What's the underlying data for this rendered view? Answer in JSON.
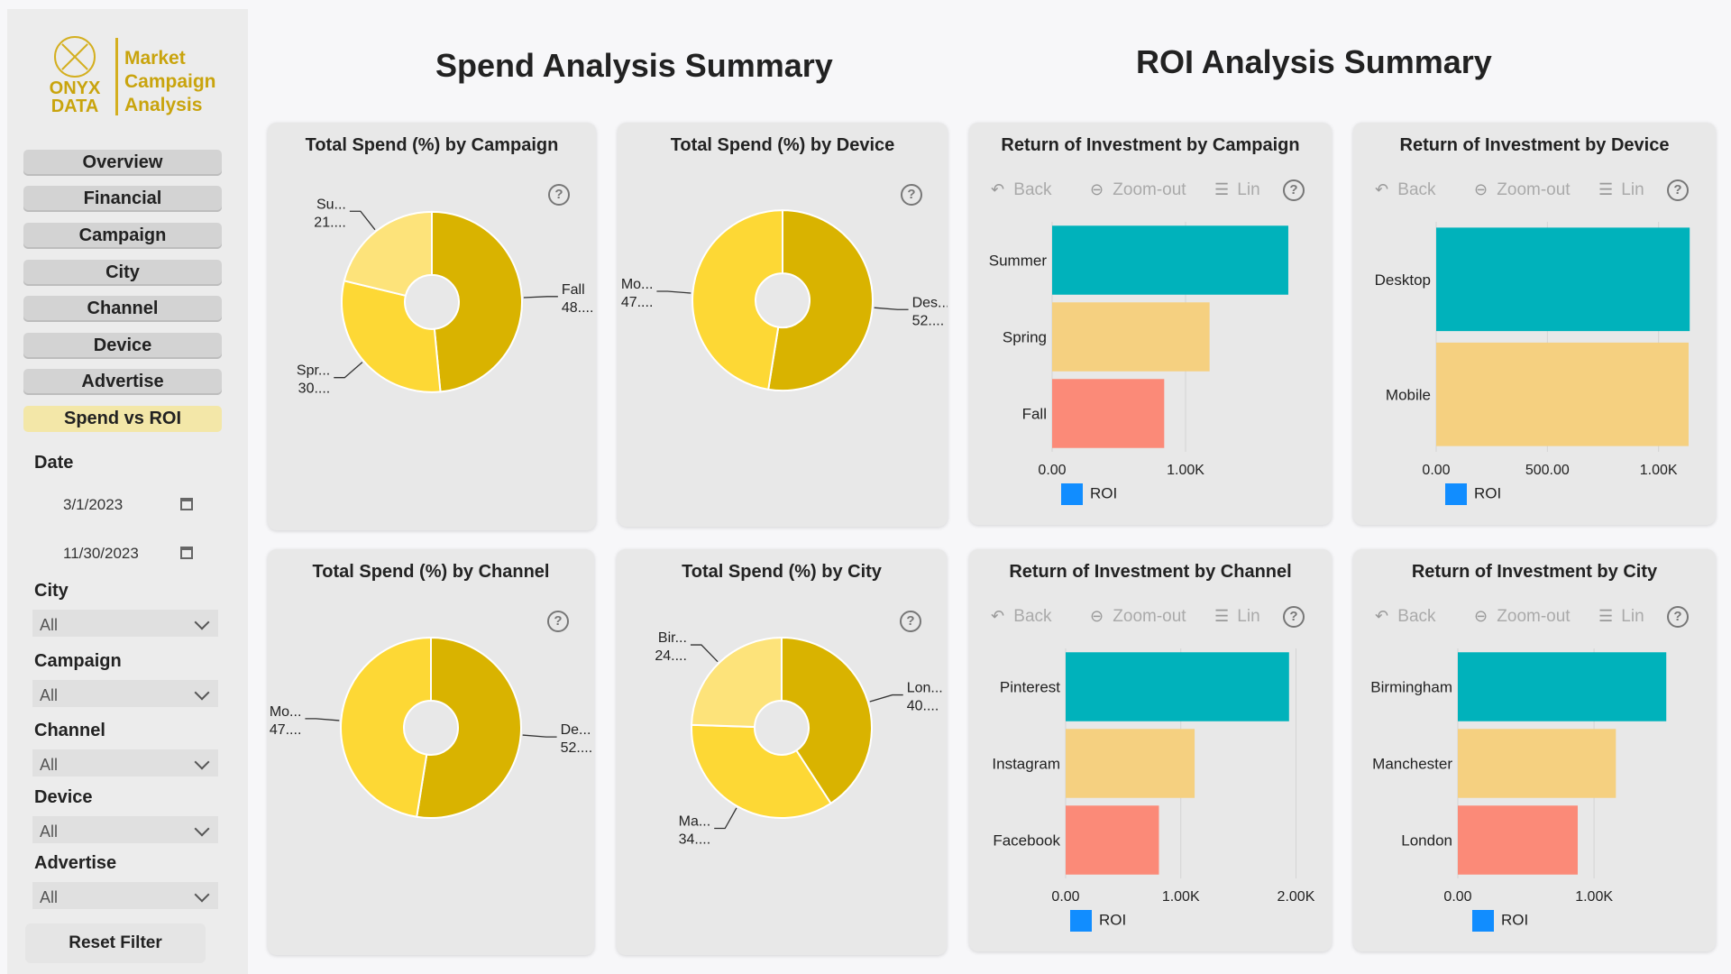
{
  "logo": {
    "onyx": "ONYX\nDATA",
    "title": "Market\nCampaign\nAnalysis"
  },
  "nav": [
    {
      "label": "Overview",
      "active": false
    },
    {
      "label": "Financial",
      "active": false
    },
    {
      "label": "Campaign",
      "active": false
    },
    {
      "label": "City",
      "active": false
    },
    {
      "label": "Channel",
      "active": false
    },
    {
      "label": "Device",
      "active": false
    },
    {
      "label": "Advertise",
      "active": false
    },
    {
      "label": "Spend vs ROI",
      "active": true
    }
  ],
  "filters": {
    "date_label": "Date",
    "date_start": "3/1/2023",
    "date_end": "11/30/2023",
    "city_label": "City",
    "city_value": "All",
    "campaign_label": "Campaign",
    "campaign_value": "All",
    "channel_label": "Channel",
    "channel_value": "All",
    "device_label": "Device",
    "device_value": "All",
    "advertise_label": "Advertise",
    "advertise_value": "All",
    "reset_label": "Reset Filter"
  },
  "headings": {
    "spend": "Spend Analysis Summary",
    "roi": "ROI Analysis Summary"
  },
  "toolbar": {
    "back": "Back",
    "zoom_out": "Zoom-out",
    "lin": "Lin",
    "help": "?"
  },
  "colors": {
    "accent": "#d4af1f",
    "teal": "#00b2bb",
    "sand": "#f5d080",
    "salmon": "#fb8a78",
    "legend": "#118dff",
    "donut_dark": "#d9b300",
    "donut_mid": "#fdd835",
    "donut_light": "#fde37a"
  },
  "chart_data": [
    {
      "id": "spend_campaign",
      "type": "pie",
      "title": "Total Spend (%) by Campaign",
      "slices": [
        {
          "label": "Fall",
          "value": 48,
          "label_text": "Fall",
          "value_text": "48....",
          "color": "#d9b300"
        },
        {
          "label": "Spring",
          "value": 30,
          "label_text": "Spr...",
          "value_text": "30....",
          "color": "#fdd835"
        },
        {
          "label": "Summer",
          "value": 21,
          "label_text": "Su...",
          "value_text": "21....",
          "color": "#fde37a"
        }
      ]
    },
    {
      "id": "spend_device",
      "type": "pie",
      "title": "Total Spend (%) by Device",
      "slices": [
        {
          "label": "Desktop",
          "value": 52,
          "label_text": "Des...",
          "value_text": "52....",
          "color": "#d9b300"
        },
        {
          "label": "Mobile",
          "value": 47,
          "label_text": "Mo...",
          "value_text": "47....",
          "color": "#fdd835"
        }
      ]
    },
    {
      "id": "spend_channel",
      "type": "pie",
      "title": "Total Spend (%) by Channel",
      "slices": [
        {
          "label": "Desktop",
          "value": 52,
          "label_text": "De...",
          "value_text": "52....",
          "color": "#d9b300"
        },
        {
          "label": "Mobile",
          "value": 47,
          "label_text": "Mo...",
          "value_text": "47....",
          "color": "#fdd835"
        }
      ]
    },
    {
      "id": "spend_city",
      "type": "pie",
      "title": "Total Spend (%) by City",
      "slices": [
        {
          "label": "London",
          "value": 40,
          "label_text": "Lon...",
          "value_text": "40....",
          "color": "#d9b300"
        },
        {
          "label": "Manchester",
          "value": 34,
          "label_text": "Ma...",
          "value_text": "34....",
          "color": "#fdd835"
        },
        {
          "label": "Birmingham",
          "value": 24,
          "label_text": "Bir...",
          "value_text": "24....",
          "color": "#fde37a"
        }
      ]
    },
    {
      "id": "roi_campaign",
      "type": "bar",
      "title": "Return of Investment by Campaign",
      "categories": [
        "Summer",
        "Spring",
        "Fall"
      ],
      "values": [
        1770,
        1180,
        840
      ],
      "xlim": [
        0,
        2000
      ],
      "ticks": [
        {
          "v": 0,
          "t": "0.00"
        },
        {
          "v": 1000,
          "t": "1.00K"
        }
      ],
      "legend": "ROI"
    },
    {
      "id": "roi_device",
      "type": "bar",
      "title": "Return of Investment by Device",
      "categories": [
        "Desktop",
        "Mobile"
      ],
      "values": [
        1140,
        1135
      ],
      "xlim": [
        0,
        1200
      ],
      "ticks": [
        {
          "v": 0,
          "t": "0.00"
        },
        {
          "v": 500,
          "t": "500.00"
        },
        {
          "v": 1000,
          "t": "1.00K"
        }
      ],
      "legend": "ROI"
    },
    {
      "id": "roi_channel",
      "type": "bar",
      "title": "Return of Investment by Channel",
      "categories": [
        "Pinterest",
        "Instagram",
        "Facebook"
      ],
      "values": [
        1940,
        1120,
        810
      ],
      "xlim": [
        0,
        2200
      ],
      "ticks": [
        {
          "v": 0,
          "t": "0.00"
        },
        {
          "v": 1000,
          "t": "1.00K"
        },
        {
          "v": 2000,
          "t": "2.00K"
        }
      ],
      "legend": "ROI"
    },
    {
      "id": "roi_city",
      "type": "bar",
      "title": "Return of Investment by City",
      "categories": [
        "Birmingham",
        "Manchester",
        "London"
      ],
      "values": [
        1530,
        1160,
        880
      ],
      "xlim": [
        0,
        1800
      ],
      "ticks": [
        {
          "v": 0,
          "t": "0.00"
        },
        {
          "v": 1000,
          "t": "1.00K"
        }
      ],
      "legend": "ROI"
    }
  ]
}
